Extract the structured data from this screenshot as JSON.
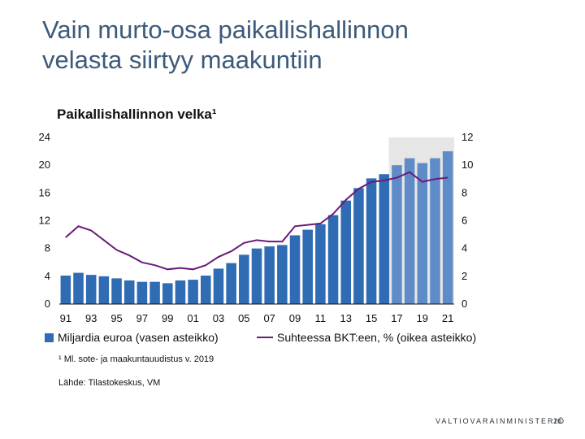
{
  "slide": {
    "title_line1": "Vain murto-osa paikallishallinnon",
    "title_line2": "velasta siirtyy maakuntiin",
    "footer_brand": "VALTIOVARAINMINISTERIÖ",
    "page_number": "26"
  },
  "colors": {
    "title": "#3c5a7a",
    "bar_actual": "#2f6cb3",
    "bar_forecast": "#5f8cc8",
    "line": "#6a1b7a",
    "forecast_shade": "#e6e6e6"
  },
  "chart_data": {
    "type": "bar+line",
    "title": "Paikallishallinnon velka¹",
    "x_tick_labels": [
      "91",
      "93",
      "95",
      "97",
      "99",
      "01",
      "03",
      "05",
      "07",
      "09",
      "11",
      "13",
      "15",
      "17",
      "19",
      "21"
    ],
    "years": [
      1991,
      1992,
      1993,
      1994,
      1995,
      1996,
      1997,
      1998,
      1999,
      2000,
      2001,
      2002,
      2003,
      2004,
      2005,
      2006,
      2007,
      2008,
      2009,
      2010,
      2011,
      2012,
      2013,
      2014,
      2015,
      2016,
      2017,
      2018,
      2019,
      2020,
      2021
    ],
    "left_axis": {
      "ticks": [
        "0",
        "4",
        "8",
        "12",
        "16",
        "20",
        "24"
      ],
      "range": [
        0,
        24
      ]
    },
    "right_axis": {
      "ticks": [
        "0",
        "2",
        "4",
        "6",
        "8",
        "10",
        "12"
      ],
      "range": [
        0,
        12
      ]
    },
    "forecast_from_year": 2017,
    "series": [
      {
        "name": "Miljardia euroa (vasen asteikko)",
        "type": "bar",
        "axis": "left",
        "values": [
          4.1,
          4.5,
          4.2,
          4.0,
          3.7,
          3.4,
          3.2,
          3.2,
          3.0,
          3.4,
          3.5,
          4.1,
          5.1,
          5.9,
          7.1,
          8.0,
          8.3,
          8.5,
          9.9,
          10.7,
          11.5,
          12.8,
          14.9,
          16.7,
          18.1,
          18.7,
          20.0,
          21.0,
          20.3,
          21.0,
          22.0
        ]
      },
      {
        "name": "Suhteessa BKT:een, % (oikea asteikko)",
        "type": "line",
        "axis": "right",
        "values": [
          4.8,
          5.6,
          5.3,
          4.6,
          3.9,
          3.5,
          3.0,
          2.8,
          2.5,
          2.6,
          2.5,
          2.8,
          3.4,
          3.8,
          4.4,
          4.6,
          4.5,
          4.5,
          5.6,
          5.7,
          5.8,
          6.5,
          7.5,
          8.3,
          8.8,
          8.9,
          9.1,
          9.5,
          8.8,
          9.0,
          9.1
        ]
      }
    ],
    "footnote": "¹ Ml. sote- ja maakuntauudistus  v. 2019",
    "source": "Lähde: Tilastokeskus, VM",
    "grid": false,
    "legend_placement": "bottom"
  }
}
